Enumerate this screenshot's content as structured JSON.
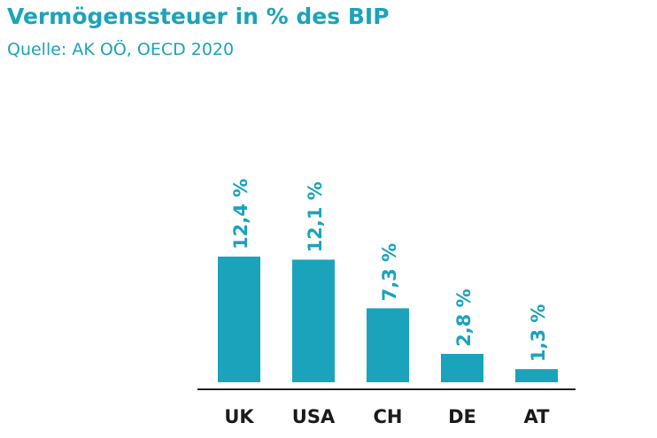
{
  "title": "Vermögenssteuer in % des BIP",
  "subtitle": "Quelle: AK OÖ, OECD 2020",
  "colors": {
    "bar": "#1ba3bb",
    "label": "#1ba3bb",
    "axis": "#222222",
    "category": "#1a1a1a"
  },
  "chart_data": {
    "type": "bar",
    "categories": [
      "UK",
      "USA",
      "CH",
      "DE",
      "AT"
    ],
    "values": [
      12.4,
      12.1,
      7.3,
      2.8,
      1.3
    ],
    "value_labels": [
      "12,4 %",
      "12,1 %",
      "7,3 %",
      "2,8 %",
      "1,3 %"
    ],
    "title": "Vermögenssteuer in % des BIP",
    "xlabel": "",
    "ylabel": "",
    "ylim": [
      0,
      12.4
    ],
    "grid": false,
    "legend": "none"
  }
}
